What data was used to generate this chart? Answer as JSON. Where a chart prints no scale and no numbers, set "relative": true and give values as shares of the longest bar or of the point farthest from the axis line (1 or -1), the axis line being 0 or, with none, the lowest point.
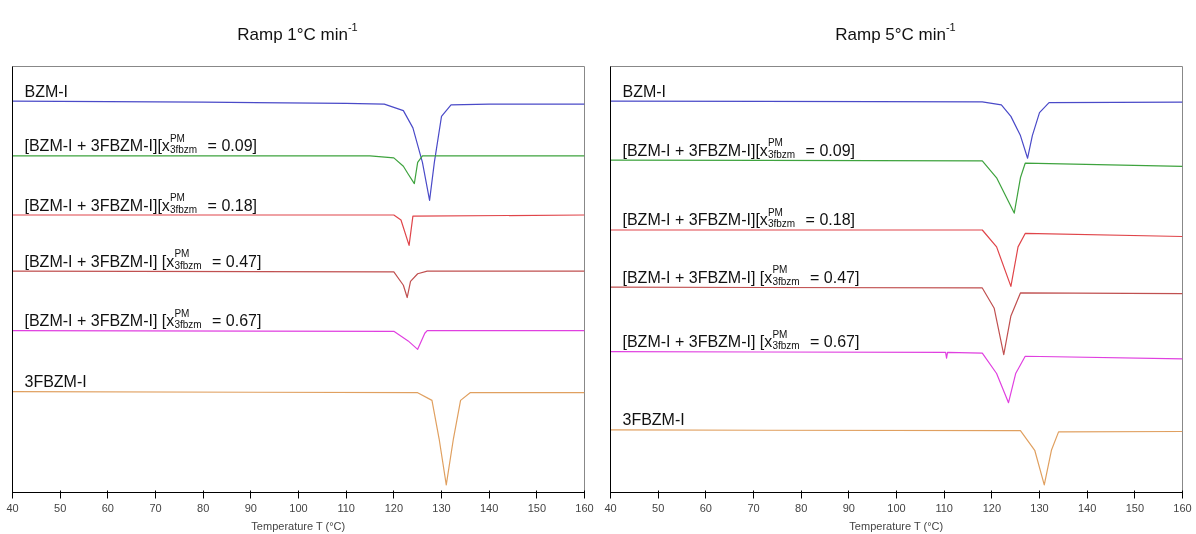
{
  "chart_data": [
    {
      "type": "line",
      "title": "Ramp 1°C min$^{-1}$",
      "xlabel": "Temperature T (°C)",
      "relative": true,
      "xlim": [
        40,
        160
      ],
      "xticks": [
        40,
        50,
        60,
        70,
        80,
        90,
        100,
        110,
        120,
        130,
        140,
        150,
        160
      ],
      "grid": false,
      "series": [
        {
          "name": "BZM-I",
          "color": "#4a4ac8",
          "x": [
            40,
            80,
            110,
            118,
            122,
            124,
            126,
            127.5,
            128.5,
            130,
            132,
            140,
            160
          ],
          "values": [
            1.0,
            0.997,
            0.994,
            0.992,
            0.975,
            0.93,
            0.84,
            0.741,
            0.84,
            0.96,
            0.99,
            0.992,
            0.992
          ]
        },
        {
          "name": "[BZM-I + 3FBZM-I][x$^{PM}$$_{3fbzm}$ = 0.09]",
          "color": "#3ea33e",
          "x": [
            40,
            115,
            120,
            122,
            123,
            124.3,
            125,
            126,
            160
          ],
          "values": [
            0.857,
            0.857,
            0.852,
            0.83,
            0.81,
            0.785,
            0.84,
            0.857,
            0.857
          ]
        },
        {
          "name": "[BZM-I + 3FBZM-I][x$^{PM}$$_{3fbzm}$ = 0.18]",
          "color": "#e0454a",
          "x": [
            40,
            120,
            121.5,
            123.2,
            124,
            160
          ],
          "values": [
            0.703,
            0.703,
            0.69,
            0.624,
            0.7,
            0.703
          ]
        },
        {
          "name": "[BZM-I + 3FBZM-I] [x$^{PM}$$_{3fbzm}$ = 0.47]",
          "color": "#c05050",
          "x": [
            40,
            120,
            122,
            122.8,
            123.5,
            125,
            127,
            160
          ],
          "values": [
            0.557,
            0.555,
            0.52,
            0.488,
            0.53,
            0.55,
            0.557,
            0.557
          ]
        },
        {
          "name": "[BZM-I + 3FBZM-I] [x$^{PM}$$_{3fbzm}$ = 0.67]",
          "color": "#e040e0",
          "x": [
            40,
            120,
            123,
            125,
            126.5,
            127,
            160
          ],
          "values": [
            0.402,
            0.4,
            0.375,
            0.353,
            0.395,
            0.402,
            0.402
          ]
        },
        {
          "name": "3FBZM-I",
          "color": "#e0a060",
          "x": [
            40,
            125,
            128,
            129.5,
            131,
            132.5,
            134,
            136,
            160
          ],
          "values": [
            0.243,
            0.24,
            0.22,
            0.12,
            0.0,
            0.12,
            0.22,
            0.24,
            0.24
          ]
        }
      ]
    },
    {
      "type": "line",
      "title": "Ramp 5°C min$^{-1}$",
      "xlabel": "Temperature T (°C)",
      "relative": true,
      "xlim": [
        40,
        160
      ],
      "xticks": [
        40,
        50,
        60,
        70,
        80,
        90,
        100,
        110,
        120,
        130,
        140,
        150,
        160
      ],
      "grid": false,
      "series": [
        {
          "name": "BZM-I",
          "color": "#4a4ac8",
          "x": [
            40,
            118,
            122,
            124,
            126,
            127.5,
            128.5,
            130,
            132,
            160
          ],
          "values": [
            1.0,
            0.998,
            0.99,
            0.96,
            0.91,
            0.851,
            0.91,
            0.97,
            0.996,
            0.997
          ]
        },
        {
          "name": "[BZM-I + 3FBZM-I][x$^{PM}$$_{3fbzm}$ = 0.09]",
          "color": "#3ea33e",
          "x": [
            40,
            118,
            121,
            124.7,
            126,
            127,
            160
          ],
          "values": [
            0.846,
            0.844,
            0.8,
            0.708,
            0.8,
            0.838,
            0.83
          ]
        },
        {
          "name": "[BZM-I + 3FBZM-I][x$^{PM}$$_{3fbzm}$ = 0.18]",
          "color": "#e0454a",
          "x": [
            40,
            118,
            121,
            124,
            125.5,
            127,
            160
          ],
          "values": [
            0.664,
            0.664,
            0.62,
            0.517,
            0.62,
            0.655,
            0.647
          ]
        },
        {
          "name": "[BZM-I + 3FBZM-I] [x$^{PM}$$_{3fbzm}$ = 0.47]",
          "color": "#c05050",
          "x": [
            40,
            118,
            120.5,
            122.5,
            124,
            126,
            160
          ],
          "values": [
            0.515,
            0.513,
            0.46,
            0.339,
            0.44,
            0.5,
            0.498
          ]
        },
        {
          "name": "[BZM-I + 3FBZM-I] [x$^{PM}$$_{3fbzm}$ = 0.67]",
          "color": "#e040e0",
          "x": [
            40,
            110.3,
            110.5,
            110.7,
            118,
            121,
            123.5,
            125,
            127,
            160
          ],
          "values": [
            0.347,
            0.345,
            0.33,
            0.345,
            0.343,
            0.29,
            0.214,
            0.29,
            0.335,
            0.328
          ]
        },
        {
          "name": "3FBZM-I",
          "color": "#e0a060",
          "x": [
            40,
            126,
            129,
            131,
            132.5,
            134,
            160
          ],
          "values": [
            0.143,
            0.141,
            0.09,
            0.0,
            0.09,
            0.138,
            0.139
          ]
        }
      ]
    }
  ]
}
